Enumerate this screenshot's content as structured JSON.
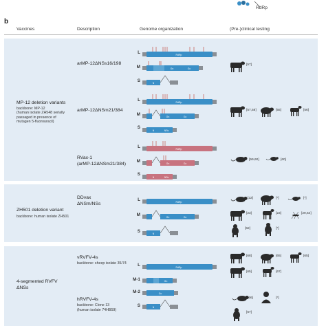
{
  "top_fragment": {
    "label": "RdRp"
  },
  "panel_letter": "b",
  "headers": [
    "Vaccines",
    "Description",
    "Genome organization",
    "(Pre-)clinical testing"
  ],
  "groups": [
    {
      "title": "MP-12 deletion variants",
      "details": [
        "backbone: MP-12",
        "(human isolate ZH548 serially",
        "passaged in presence of",
        "mutagen 5-fluorouracil)"
      ],
      "entries": [
        {
          "name": "arMP-12ΔNSs16/198"
        },
        {
          "name": "arMP-12ΔNSm21/384"
        },
        {
          "name": "RVax-1",
          "subname": "(arMP-12ΔNSm21/384)"
        }
      ]
    },
    {
      "title": "ZH501 deletion variant",
      "details": [
        "backbone: human isolate ZH501"
      ],
      "entries": [
        {
          "name": "DDvax",
          "subname": "ΔNSm/NSs"
        }
      ]
    },
    {
      "title": "4-segmented RVFV",
      "title2": "ΔNSs",
      "entries": [
        {
          "name": "vRVFV-4s",
          "detail": "backbone: sheep isolate 35/74"
        },
        {
          "name": "hRVFV-4s",
          "detail": "backbone: Clone 13",
          "detail2": "(human isolate 74HB59)"
        }
      ]
    }
  ],
  "segments": {
    "L": "L",
    "M": "M",
    "S": "S",
    "M1": "M-1",
    "M2": "M-2"
  },
  "gene_labels": {
    "rdrp": "RdRp",
    "gn": "Gn",
    "gc": "Gc",
    "n": "N",
    "nss": "NSs"
  },
  "citations": {
    "c57": "[57]",
    "c5758": "[57,58]",
    "c55": "[55]",
    "c56": "[56]",
    "c5960": "[59,60]",
    "c60": "[60]",
    "c22": "[22]",
    "star": "[*]",
    "c23": "[23]",
    "c2964": "[29,64]",
    "c62": "[62]",
    "c68": "[68]",
    "c65": "[65]",
    "c66": "[66]",
    "c67": "[67]"
  },
  "colors": {
    "panel_bg": "#e3ecf5",
    "segment_blue": "#3a8fc7",
    "segment_pink": "#c8737f",
    "segment_grey": "#8a8f95",
    "mutation_marker": "#c0392b",
    "animal_silhouette": "#2a2a2a"
  }
}
